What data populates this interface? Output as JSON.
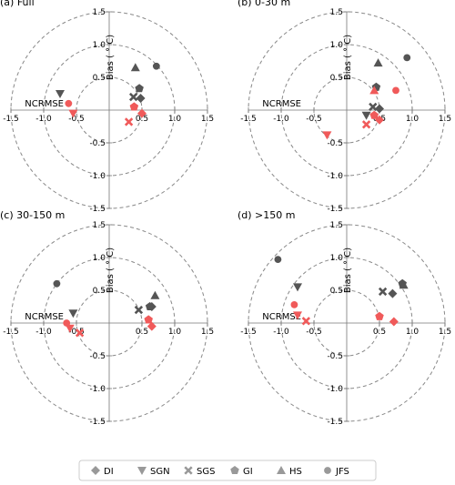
{
  "colors": {
    "dark": "#555555",
    "red": "#f05a5a",
    "circle": "#888888",
    "axis": "#777777"
  },
  "chart_data": [
    {
      "type": "scatter",
      "title": "(a) Full",
      "xlabel": "NCRMSE",
      "ylabel": "Bias ( ° C)",
      "xlim": [
        -1.5,
        1.5
      ],
      "ylim": [
        -1.5,
        1.5
      ],
      "ticks": [
        "-1.5",
        "-1.0",
        "-0.5",
        "0.5",
        "1.0",
        "1.5"
      ],
      "circles": [
        0.5,
        1.0,
        1.5
      ],
      "series": [
        {
          "name": "DI",
          "marker": "diamond",
          "color": "dark",
          "x": 0.48,
          "y": 0.18
        },
        {
          "name": "SGN",
          "marker": "triangle-down",
          "color": "dark",
          "x": -0.75,
          "y": 0.25
        },
        {
          "name": "SGS",
          "marker": "x",
          "color": "dark",
          "x": 0.37,
          "y": 0.2
        },
        {
          "name": "GI",
          "marker": "pentagon",
          "color": "dark",
          "x": 0.46,
          "y": 0.33
        },
        {
          "name": "HS",
          "marker": "triangle-up",
          "color": "dark",
          "x": 0.4,
          "y": 0.65
        },
        {
          "name": "JFS",
          "marker": "circle",
          "color": "dark",
          "x": 0.72,
          "y": 0.67
        },
        {
          "name": "DI",
          "marker": "diamond",
          "color": "red",
          "x": 0.5,
          "y": -0.05
        },
        {
          "name": "SGN",
          "marker": "triangle-down",
          "color": "red",
          "x": -0.55,
          "y": -0.05
        },
        {
          "name": "SGS",
          "marker": "x",
          "color": "red",
          "x": 0.3,
          "y": -0.18
        },
        {
          "name": "GI",
          "marker": "pentagon",
          "color": "red",
          "x": 0.38,
          "y": 0.05
        },
        {
          "name": "JFS",
          "marker": "circle",
          "color": "red",
          "x": -0.62,
          "y": 0.1
        }
      ]
    },
    {
      "type": "scatter",
      "title": "(b) 0-30 m",
      "xlabel": "NCRMSE",
      "ylabel": "Bias ( ° C)",
      "xlim": [
        -1.5,
        1.5
      ],
      "ylim": [
        -1.5,
        1.5
      ],
      "ticks": [
        "-1.5",
        "-1.0",
        "-0.5",
        "0.5",
        "1.0",
        "1.5"
      ],
      "circles": [
        0.5,
        1.0,
        1.5
      ],
      "series": [
        {
          "name": "DI",
          "marker": "diamond",
          "color": "dark",
          "x": 0.5,
          "y": 0.02
        },
        {
          "name": "SGN",
          "marker": "triangle-down",
          "color": "dark",
          "x": 0.3,
          "y": -0.08
        },
        {
          "name": "SGS",
          "marker": "x",
          "color": "dark",
          "x": 0.4,
          "y": 0.05
        },
        {
          "name": "GI",
          "marker": "pentagon",
          "color": "dark",
          "x": 0.45,
          "y": 0.35
        },
        {
          "name": "HS",
          "marker": "triangle-up",
          "color": "dark",
          "x": 0.48,
          "y": 0.72
        },
        {
          "name": "JFS",
          "marker": "circle",
          "color": "dark",
          "x": 0.92,
          "y": 0.8
        },
        {
          "name": "DI",
          "marker": "diamond",
          "color": "red",
          "x": 0.5,
          "y": -0.15
        },
        {
          "name": "SGN",
          "marker": "triangle-down",
          "color": "red",
          "x": -0.3,
          "y": -0.38
        },
        {
          "name": "SGS",
          "marker": "x",
          "color": "red",
          "x": 0.3,
          "y": -0.22
        },
        {
          "name": "GI",
          "marker": "pentagon",
          "color": "red",
          "x": 0.42,
          "y": -0.08
        },
        {
          "name": "HS",
          "marker": "triangle-up",
          "color": "red",
          "x": 0.42,
          "y": 0.3
        },
        {
          "name": "JFS",
          "marker": "circle",
          "color": "red",
          "x": 0.75,
          "y": 0.3
        }
      ]
    },
    {
      "type": "scatter",
      "title": "(c) 30-150 m",
      "xlabel": "NCRMSE",
      "ylabel": "Bias ( ° C)",
      "xlim": [
        -1.5,
        1.5
      ],
      "ylim": [
        -1.5,
        1.5
      ],
      "ticks": [
        "-1.5",
        "-1.0",
        "-0.5",
        "0.5",
        "1.0",
        "1.5"
      ],
      "circles": [
        0.5,
        1.0,
        1.5
      ],
      "series": [
        {
          "name": "DI",
          "marker": "diamond",
          "color": "dark",
          "x": 0.65,
          "y": 0.25
        },
        {
          "name": "SGN",
          "marker": "triangle-down",
          "color": "dark",
          "x": -0.55,
          "y": 0.15
        },
        {
          "name": "SGS",
          "marker": "x",
          "color": "dark",
          "x": 0.45,
          "y": 0.2
        },
        {
          "name": "GI",
          "marker": "pentagon",
          "color": "dark",
          "x": 0.62,
          "y": 0.25
        },
        {
          "name": "HS",
          "marker": "triangle-up",
          "color": "dark",
          "x": 0.7,
          "y": 0.42
        },
        {
          "name": "JFS",
          "marker": "circle",
          "color": "dark",
          "x": -0.8,
          "y": 0.6
        },
        {
          "name": "DI",
          "marker": "diamond",
          "color": "red",
          "x": 0.65,
          "y": -0.05
        },
        {
          "name": "SGN",
          "marker": "triangle-down",
          "color": "red",
          "x": -0.6,
          "y": -0.08
        },
        {
          "name": "SGS",
          "marker": "x",
          "color": "red",
          "x": -0.45,
          "y": -0.15
        },
        {
          "name": "GI",
          "marker": "pentagon",
          "color": "red",
          "x": 0.6,
          "y": 0.05
        },
        {
          "name": "JFS",
          "marker": "circle",
          "color": "red",
          "x": -0.65,
          "y": 0.0
        }
      ]
    },
    {
      "type": "scatter",
      "title": "(d) >150 m",
      "xlabel": "NCRMSE",
      "ylabel": "Bias ( ° C)",
      "xlim": [
        -1.5,
        1.5
      ],
      "ylim": [
        -1.5,
        1.5
      ],
      "ticks": [
        "-1.5",
        "-1.0",
        "-0.5",
        "0.5",
        "1.0",
        "1.5"
      ],
      "circles": [
        0.5,
        1.0,
        1.5
      ],
      "series": [
        {
          "name": "DI",
          "marker": "diamond",
          "color": "dark",
          "x": 0.7,
          "y": 0.45
        },
        {
          "name": "SGN",
          "marker": "triangle-down",
          "color": "dark",
          "x": -0.75,
          "y": 0.55
        },
        {
          "name": "SGS",
          "marker": "x",
          "color": "dark",
          "x": 0.55,
          "y": 0.48
        },
        {
          "name": "GI",
          "marker": "pentagon",
          "color": "dark",
          "x": 0.85,
          "y": 0.6
        },
        {
          "name": "HS",
          "marker": "triangle-up",
          "color": "dark",
          "x": 0.87,
          "y": 0.58
        },
        {
          "name": "JFS",
          "marker": "circle",
          "color": "dark",
          "x": -1.05,
          "y": 0.97
        },
        {
          "name": "DI",
          "marker": "diamond",
          "color": "red",
          "x": 0.72,
          "y": 0.02
        },
        {
          "name": "SGN",
          "marker": "triangle-down",
          "color": "red",
          "x": -0.75,
          "y": 0.12
        },
        {
          "name": "SGS",
          "marker": "x",
          "color": "red",
          "x": -0.62,
          "y": 0.03
        },
        {
          "name": "GI",
          "marker": "pentagon",
          "color": "red",
          "x": 0.5,
          "y": 0.1
        },
        {
          "name": "JFS",
          "marker": "circle",
          "color": "red",
          "x": -0.8,
          "y": 0.28
        }
      ]
    }
  ],
  "legend": {
    "items": [
      {
        "label": "DI",
        "marker": "diamond"
      },
      {
        "label": "SGN",
        "marker": "triangle-down"
      },
      {
        "label": "SGS",
        "marker": "x"
      },
      {
        "label": "GI",
        "marker": "pentagon"
      },
      {
        "label": "HS",
        "marker": "triangle-up"
      },
      {
        "label": "JFS",
        "marker": "circle"
      }
    ]
  }
}
